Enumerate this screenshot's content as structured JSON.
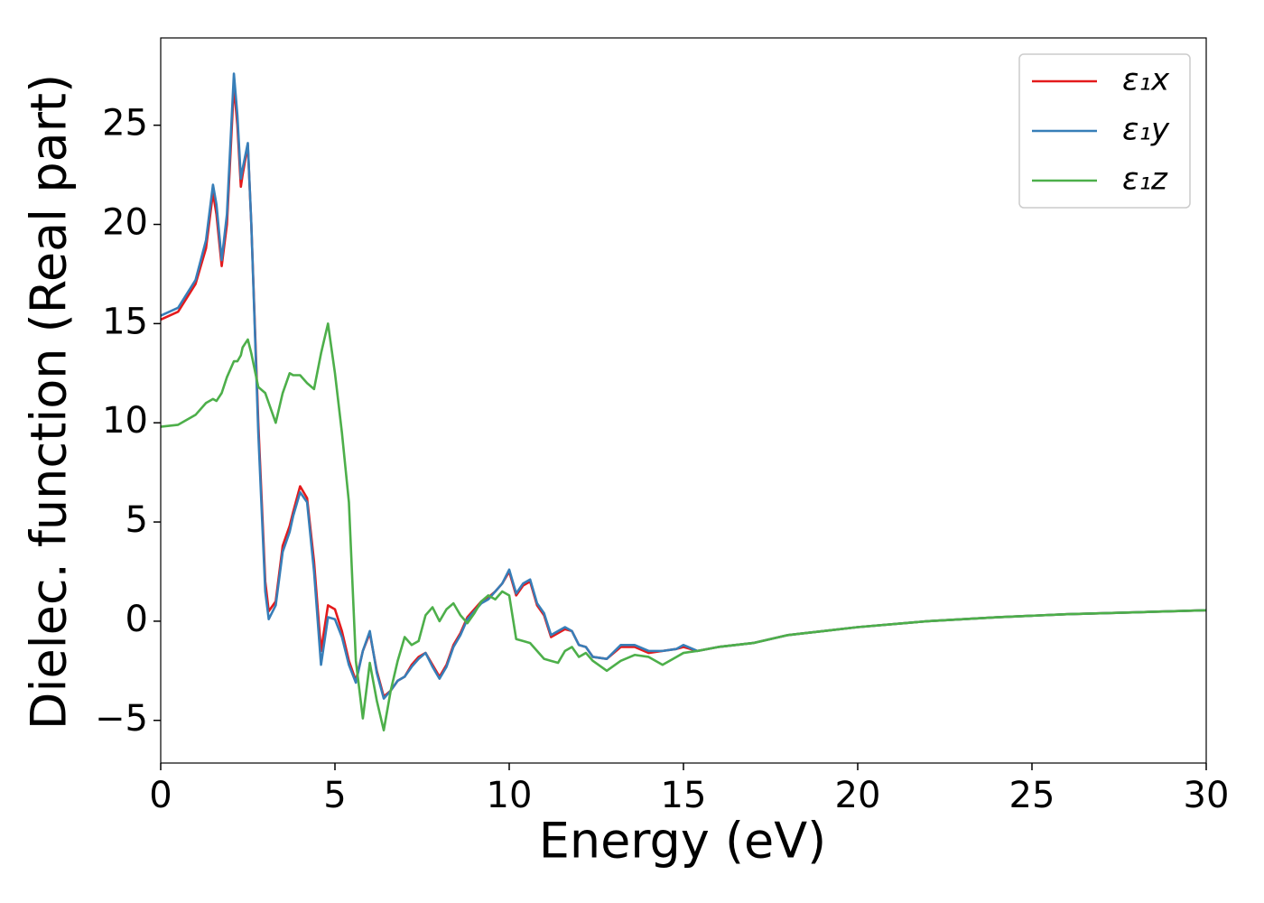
{
  "chart_data": {
    "type": "line",
    "xlabel": "Energy (eV)",
    "ylabel": "Dielec. function (Real part)",
    "x": [
      0,
      0.5,
      1.0,
      1.3,
      1.5,
      1.6,
      1.75,
      1.9,
      2.1,
      2.2,
      2.3,
      2.35,
      2.5,
      2.6,
      2.8,
      3.0,
      3.1,
      3.3,
      3.5,
      3.7,
      3.8,
      4.0,
      4.2,
      4.4,
      4.6,
      4.8,
      5.0,
      5.2,
      5.4,
      5.6,
      5.8,
      6.0,
      6.2,
      6.4,
      6.6,
      6.8,
      7.0,
      7.2,
      7.4,
      7.6,
      7.8,
      8.0,
      8.2,
      8.4,
      8.6,
      8.8,
      9.0,
      9.2,
      9.4,
      9.6,
      9.8,
      10.0,
      10.2,
      10.4,
      10.6,
      10.8,
      11.0,
      11.2,
      11.4,
      11.6,
      11.8,
      12.0,
      12.2,
      12.4,
      12.8,
      13.2,
      13.6,
      14.0,
      14.4,
      14.8,
      15.0,
      15.4,
      16,
      17,
      18,
      19,
      20,
      22,
      24,
      26,
      28,
      30
    ],
    "series": [
      {
        "name": "ε₁x",
        "color": "#e41a1c",
        "values": [
          15.2,
          15.6,
          17.0,
          18.8,
          21.6,
          20.5,
          17.9,
          20,
          27.0,
          25,
          21.9,
          22.5,
          24.0,
          20,
          10,
          2,
          0.5,
          1.0,
          3.8,
          4.8,
          5.5,
          6.8,
          6.2,
          3,
          -1.5,
          0.8,
          0.6,
          -0.5,
          -2,
          -3,
          -1.5,
          -0.6,
          -2.5,
          -3.8,
          -3.5,
          -3,
          -2.8,
          -2.2,
          -1.8,
          -1.6,
          -2.2,
          -2.8,
          -2.2,
          -1.2,
          -0.6,
          0.2,
          0.6,
          1.0,
          1.2,
          1.5,
          1.9,
          2.5,
          1.3,
          1.8,
          2.0,
          0.8,
          0.3,
          -0.8,
          -0.6,
          -0.4,
          -0.5,
          -1.2,
          -1.3,
          -1.8,
          -1.9,
          -1.3,
          -1.3,
          -1.6,
          -1.5,
          -1.4,
          -1.3,
          -1.5,
          -1.3,
          -1.1,
          -0.7,
          -0.5,
          -0.3,
          0,
          0.2,
          0.35,
          0.45,
          0.55
        ]
      },
      {
        "name": "ε₁y",
        "color": "#377eb8",
        "values": [
          15.4,
          15.8,
          17.2,
          19.2,
          22.0,
          21,
          18.2,
          20.5,
          27.6,
          25.5,
          22.3,
          22.8,
          24.1,
          20,
          9.5,
          1.5,
          0.1,
          0.8,
          3.5,
          4.5,
          5.3,
          6.5,
          6.0,
          2.5,
          -2.2,
          0.2,
          0.1,
          -0.8,
          -2.2,
          -3.1,
          -1.5,
          -0.5,
          -2.6,
          -3.9,
          -3.5,
          -3,
          -2.8,
          -2.3,
          -1.9,
          -1.6,
          -2.3,
          -2.9,
          -2.3,
          -1.3,
          -0.7,
          0.1,
          0.5,
          0.9,
          1.1,
          1.5,
          1.9,
          2.6,
          1.4,
          1.9,
          2.1,
          0.9,
          0.4,
          -0.7,
          -0.5,
          -0.3,
          -0.5,
          -1.2,
          -1.3,
          -1.8,
          -1.9,
          -1.2,
          -1.2,
          -1.5,
          -1.5,
          -1.4,
          -1.2,
          -1.5,
          -1.3,
          -1.1,
          -0.7,
          -0.5,
          -0.3,
          0,
          0.2,
          0.35,
          0.45,
          0.55
        ]
      },
      {
        "name": "ε₁z",
        "color": "#4daf4a",
        "values": [
          9.8,
          9.9,
          10.4,
          11.0,
          11.2,
          11.1,
          11.5,
          12.3,
          13.1,
          13.1,
          13.4,
          13.8,
          14.2,
          13.5,
          11.8,
          11.5,
          11,
          10,
          11.5,
          12.5,
          12.4,
          12.4,
          12,
          11.7,
          13.5,
          15.0,
          12.5,
          9.5,
          6,
          -2,
          -4.9,
          -2.1,
          -4,
          -5.5,
          -3.5,
          -2,
          -0.8,
          -1.2,
          -1.0,
          0.3,
          0.7,
          0.0,
          0.6,
          0.9,
          0.3,
          -0.1,
          0.4,
          1.0,
          1.3,
          1.1,
          1.5,
          1.3,
          -0.9,
          -1.0,
          -1.1,
          -1.5,
          -1.9,
          -2.0,
          -2.1,
          -1.5,
          -1.3,
          -1.8,
          -1.6,
          -2.0,
          -2.5,
          -2.0,
          -1.7,
          -1.8,
          -2.2,
          -1.8,
          -1.6,
          -1.5,
          -1.3,
          -1.1,
          -0.7,
          -0.5,
          -0.3,
          0,
          0.2,
          0.35,
          0.45,
          0.55
        ]
      }
    ],
    "xlim": [
      0,
      30
    ],
    "xticks": [
      0,
      5,
      10,
      15,
      20,
      25,
      30
    ],
    "ylim": [
      -7.15,
      29.4
    ],
    "yticks": [
      {
        "value": -5,
        "label": "−5"
      },
      0,
      5,
      10,
      15,
      20,
      25
    ],
    "legend": "upper right"
  }
}
